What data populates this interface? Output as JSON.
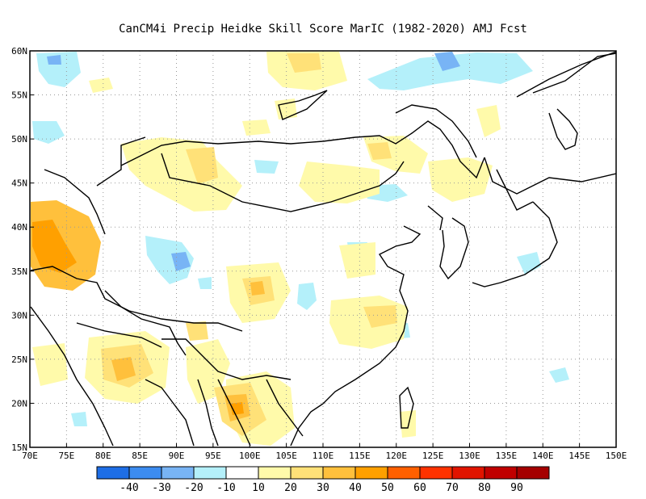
{
  "title": "CanCM4i Precip Heidke Skill Score MarIC (1982-2020) AMJ Fcst",
  "map": {
    "lon_range": [
      70,
      150
    ],
    "lat_range": [
      15,
      60
    ],
    "lon_ticks": [
      "70E",
      "75E",
      "80E",
      "85E",
      "90E",
      "95E",
      "100E",
      "105E",
      "110E",
      "115E",
      "120E",
      "125E",
      "130E",
      "135E",
      "140E",
      "145E",
      "150E"
    ],
    "lat_ticks": [
      "60N",
      "55N",
      "50N",
      "45N",
      "40N",
      "35N",
      "30N",
      "25N",
      "20N",
      "15N"
    ],
    "grid": true
  },
  "colorbar": {
    "labels": [
      "-40",
      "-30",
      "-20",
      "-10",
      "10",
      "20",
      "30",
      "40",
      "50",
      "60",
      "70",
      "80",
      "90"
    ],
    "colors": [
      "#1e6ee6",
      "#3c8cf0",
      "#78b4f5",
      "#b4f0fa",
      "#ffffff",
      "#fffaaa",
      "#ffe178",
      "#ffc03c",
      "#ffa000",
      "#ff6000",
      "#ff3200",
      "#e11400",
      "#c00000",
      "#a50000"
    ]
  }
}
